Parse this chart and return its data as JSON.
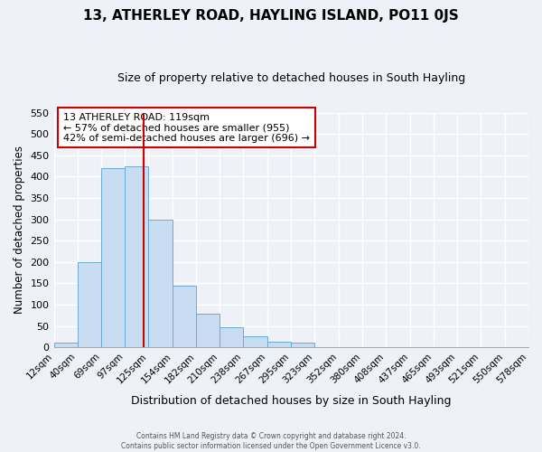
{
  "title": "13, ATHERLEY ROAD, HAYLING ISLAND, PO11 0JS",
  "subtitle": "Size of property relative to detached houses in South Hayling",
  "xlabel": "Distribution of detached houses by size in South Hayling",
  "ylabel": "Number of detached properties",
  "bin_labels": [
    "12sqm",
    "40sqm",
    "69sqm",
    "97sqm",
    "125sqm",
    "154sqm",
    "182sqm",
    "210sqm",
    "238sqm",
    "267sqm",
    "295sqm",
    "323sqm",
    "352sqm",
    "380sqm",
    "408sqm",
    "437sqm",
    "465sqm",
    "493sqm",
    "521sqm",
    "550sqm",
    "578sqm"
  ],
  "bin_edges": [
    12,
    40,
    69,
    97,
    125,
    154,
    182,
    210,
    238,
    267,
    295,
    323,
    352,
    380,
    408,
    437,
    465,
    493,
    521,
    550,
    578
  ],
  "bar_heights": [
    10,
    200,
    420,
    425,
    300,
    145,
    78,
    48,
    25,
    13,
    10,
    0,
    0,
    0,
    0,
    0,
    0,
    0,
    0,
    0,
    5
  ],
  "bar_color": "#c9ddf2",
  "bar_edge_color": "#6aaad4",
  "property_value": 119,
  "vline_color": "#cc0000",
  "annotation_text": "13 ATHERLEY ROAD: 119sqm\n← 57% of detached houses are smaller (955)\n42% of semi-detached houses are larger (696) →",
  "annotation_box_color": "white",
  "annotation_box_edge_color": "#cc0000",
  "ylim": [
    0,
    550
  ],
  "yticks": [
    0,
    50,
    100,
    150,
    200,
    250,
    300,
    350,
    400,
    450,
    500,
    550
  ],
  "footer_line1": "Contains HM Land Registry data © Crown copyright and database right 2024.",
  "footer_line2": "Contains public sector information licensed under the Open Government Licence v3.0.",
  "background_color": "#eef2f8",
  "grid_color": "white",
  "title_fontsize": 11,
  "subtitle_fontsize": 9
}
